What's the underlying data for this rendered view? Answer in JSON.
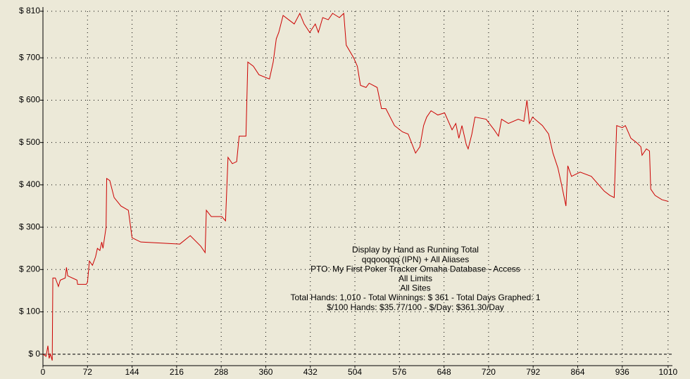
{
  "chart_data": {
    "type": "line",
    "annotations": [
      "Display by Hand as Running Total",
      "qqqooqqq (IPN) + All Aliases",
      "PTO: My First Poker Tracker Omaha Database - Access",
      "All Limits",
      "All Sites",
      "Total Hands: 1,010 - Total Winnings: $ 361 - Total Days Graphed: 1",
      "$/100 Hands: $35.77/100 - $/Day: $361.30/Day"
    ],
    "x": [
      0,
      5,
      8,
      10,
      12,
      15,
      16,
      20,
      25,
      28,
      36,
      38,
      40,
      55,
      56,
      70,
      72,
      75,
      80,
      85,
      88,
      92,
      95,
      97,
      102,
      103,
      108,
      115,
      126,
      138,
      144,
      158,
      221,
      238,
      255,
      262,
      264,
      272,
      289,
      295,
      299,
      306,
      313,
      317,
      328,
      331,
      340,
      349,
      366,
      372,
      377,
      381,
      388,
      397,
      406,
      415,
      422,
      431,
      440,
      445,
      452,
      461,
      468,
      479,
      486,
      490,
      502,
      508,
      513,
      522,
      527,
      540,
      547,
      554,
      568,
      581,
      590,
      602,
      609,
      615,
      620,
      627,
      638,
      649,
      661,
      667,
      672,
      677,
      684,
      687,
      693,
      698,
      716,
      729,
      736,
      741,
      752,
      768,
      777,
      782,
      786,
      791,
      807,
      817,
      824,
      832,
      838,
      845,
      848,
      854,
      868,
      886,
      898,
      907,
      916,
      923,
      927,
      936,
      941,
      950,
      959,
      966,
      968,
      975,
      980,
      982,
      989,
      1000,
      1010
    ],
    "series": [
      {
        "color": "#cc0000",
        "values": [
          0,
          -5,
          20,
          -10,
          0,
          -15,
          180,
          180,
          160,
          175,
          180,
          205,
          185,
          175,
          165,
          165,
          170,
          220,
          210,
          230,
          250,
          245,
          265,
          250,
          300,
          415,
          410,
          370,
          350,
          340,
          275,
          265,
          260,
          280,
          255,
          240,
          340,
          325,
          325,
          315,
          465,
          450,
          455,
          515,
          515,
          690,
          680,
          660,
          650,
          690,
          745,
          760,
          800,
          790,
          780,
          805,
          780,
          760,
          780,
          760,
          795,
          790,
          805,
          795,
          805,
          730,
          700,
          680,
          635,
          630,
          640,
          630,
          580,
          580,
          540,
          525,
          520,
          475,
          490,
          540,
          560,
          575,
          565,
          570,
          530,
          545,
          510,
          540,
          495,
          485,
          520,
          560,
          555,
          530,
          515,
          555,
          545,
          555,
          550,
          600,
          545,
          560,
          540,
          520,
          475,
          440,
          400,
          350,
          445,
          420,
          430,
          420,
          400,
          385,
          375,
          370,
          540,
          535,
          540,
          510,
          500,
          490,
          470,
          485,
          480,
          390,
          375,
          365,
          361
        ]
      }
    ],
    "xlim": [
      0,
      1017
    ],
    "ylim": [
      -27,
      810
    ],
    "xticks": [
      0,
      72,
      144,
      216,
      288,
      360,
      432,
      504,
      576,
      648,
      720,
      792,
      864,
      936,
      1010
    ],
    "yticks": [
      {
        "value": 0,
        "label": "$ 0"
      },
      {
        "value": 100,
        "label": "$ 100"
      },
      {
        "value": 200,
        "label": "$ 200"
      },
      {
        "value": 300,
        "label": "$ 300"
      },
      {
        "value": 400,
        "label": "$ 400"
      },
      {
        "value": 500,
        "label": "$ 500"
      },
      {
        "value": 600,
        "label": "$ 600"
      },
      {
        "value": 700,
        "label": "$ 700"
      },
      {
        "value": 810,
        "label": "$ 810"
      }
    ],
    "grid": true
  }
}
